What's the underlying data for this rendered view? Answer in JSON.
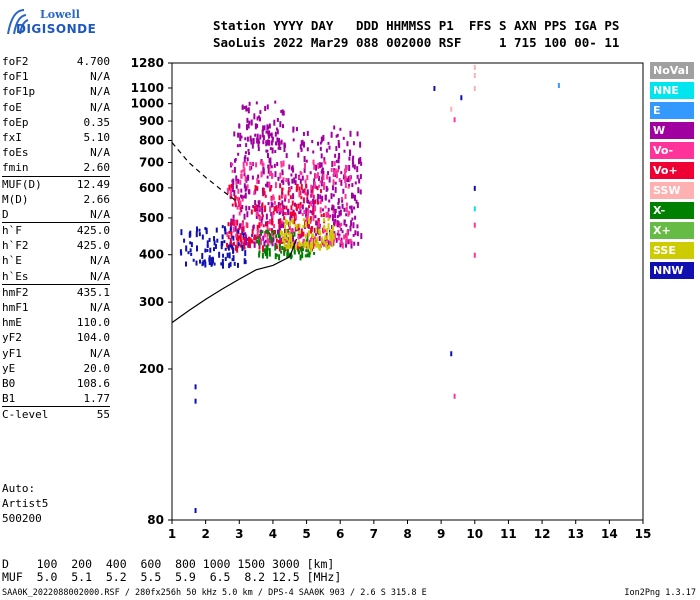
{
  "logo": {
    "top": "Lowell",
    "bottom": "DIGISONDE"
  },
  "header": {
    "line1": "Station YYYY DAY   DDD HHMMSS P1  FFS S AXN PPS IGA PS",
    "line2": "SaoLuis 2022 Mar29 088 002000 RSF     1 715 100 00- 11"
  },
  "params": [
    {
      "label": "foF2",
      "value": "4.700",
      "sep": false
    },
    {
      "label": "foF1",
      "value": "N/A",
      "sep": false
    },
    {
      "label": "foF1p",
      "value": "N/A",
      "sep": false
    },
    {
      "label": "foE",
      "value": "N/A",
      "sep": false
    },
    {
      "label": "foEp",
      "value": "0.35",
      "sep": false
    },
    {
      "label": "fxI",
      "value": "5.10",
      "sep": false
    },
    {
      "label": "foEs",
      "value": "N/A",
      "sep": false
    },
    {
      "label": "fmin",
      "value": "2.60",
      "sep": false
    },
    {
      "label": "MUF(D)",
      "value": "12.49",
      "sep": true
    },
    {
      "label": "M(D)",
      "value": "2.66",
      "sep": false
    },
    {
      "label": "D",
      "value": "N/A",
      "sep": false
    },
    {
      "label": "h`F",
      "value": "425.0",
      "sep": true
    },
    {
      "label": "h`F2",
      "value": "425.0",
      "sep": false
    },
    {
      "label": "h`E",
      "value": "N/A",
      "sep": false
    },
    {
      "label": "h`Es",
      "value": "N/A",
      "sep": false
    },
    {
      "label": "hmF2",
      "value": "435.1",
      "sep": true
    },
    {
      "label": "hmF1",
      "value": "N/A",
      "sep": false
    },
    {
      "label": "hmE",
      "value": "110.0",
      "sep": false
    },
    {
      "label": "yF2",
      "value": "104.0",
      "sep": false
    },
    {
      "label": "yF1",
      "value": "N/A",
      "sep": false
    },
    {
      "label": "yE",
      "value": "20.0",
      "sep": false
    },
    {
      "label": "B0",
      "value": "108.6",
      "sep": false
    },
    {
      "label": "B1",
      "value": "1.77",
      "sep": false
    },
    {
      "label": "C-level",
      "value": "55",
      "sep": true
    }
  ],
  "auto": {
    "line1": "Auto:",
    "line2": "Artist5",
    "line3": "500200"
  },
  "legend": [
    {
      "name": "NoVal",
      "color": "#a0a0a0"
    },
    {
      "name": "NNE",
      "color": "#00e5ee"
    },
    {
      "name": "E",
      "color": "#3399ff"
    },
    {
      "name": "W",
      "color": "#a000a0"
    },
    {
      "name": "Vo-",
      "color": "#ff3399"
    },
    {
      "name": "Vo+",
      "color": "#ee0033"
    },
    {
      "name": "SSW",
      "color": "#ffb0b0"
    },
    {
      "name": "X-",
      "color": "#008000"
    },
    {
      "name": "X+",
      "color": "#66bb44"
    },
    {
      "name": "SSE",
      "color": "#cccc00"
    },
    {
      "name": "NNW",
      "color": "#1010b0"
    }
  ],
  "footer": {
    "d_line": "D    100  200  400  600  800 1000 1500 3000 [km]",
    "muf_line": "MUF  5.0  5.1  5.2  5.5  5.9  6.5  8.2 12.5 [MHz]"
  },
  "bottom": {
    "info": "SAA0K_2022088002000.RSF / 280fx256h 50 kHz 5.0 km / DPS-4 SAA0K 903 / 2.6 S 315.8 E",
    "version": "Ion2Png 1.3.17"
  },
  "chart_data": {
    "type": "scatter",
    "title": "",
    "xlabel": "",
    "ylabel": "",
    "xlim": [
      1,
      15
    ],
    "ylim": [
      80,
      1280
    ],
    "y_scale": "log",
    "x_ticks": [
      1,
      2,
      3,
      4,
      5,
      6,
      7,
      8,
      9,
      10,
      11,
      12,
      13,
      14,
      15
    ],
    "y_ticks": [
      80,
      200,
      300,
      400,
      500,
      600,
      700,
      800,
      900,
      1000,
      1100,
      1280
    ],
    "ionogram_clusters": [
      {
        "color": "#a000a0",
        "fmin": 2.7,
        "fmax": 6.6,
        "hmin": 430,
        "hmax": 880,
        "count": 520
      },
      {
        "color": "#ee0033",
        "fmin": 2.6,
        "fmax": 5.5,
        "hmin": 420,
        "hmax": 620,
        "count": 200
      },
      {
        "color": "#ff3399",
        "fmin": 2.6,
        "fmax": 6.3,
        "hmin": 430,
        "hmax": 720,
        "count": 200
      },
      {
        "color": "#1010b0",
        "fmin": 1.2,
        "fmax": 3.2,
        "hmin": 380,
        "hmax": 480,
        "count": 90
      },
      {
        "color": "#008000",
        "fmin": 3.5,
        "fmax": 5.2,
        "hmin": 400,
        "hmax": 470,
        "count": 70
      },
      {
        "color": "#cccc00",
        "fmin": 4.2,
        "fmax": 5.8,
        "hmin": 420,
        "hmax": 500,
        "count": 90
      },
      {
        "color": "#a000a0",
        "fmin": 2.9,
        "fmax": 4.3,
        "hmin": 800,
        "hmax": 1020,
        "count": 60
      }
    ],
    "isolated_points": [
      {
        "f": 10.0,
        "h": 1250,
        "color": "#ffb0b0"
      },
      {
        "f": 10.0,
        "h": 1190,
        "color": "#ffb0b0"
      },
      {
        "f": 10.0,
        "h": 1100,
        "color": "#ffb0b0"
      },
      {
        "f": 10.0,
        "h": 600,
        "color": "#1010b0"
      },
      {
        "f": 10.0,
        "h": 530,
        "color": "#00e5ee"
      },
      {
        "f": 10.0,
        "h": 480,
        "color": "#ff3399"
      },
      {
        "f": 10.0,
        "h": 400,
        "color": "#ff3399"
      },
      {
        "f": 9.3,
        "h": 970,
        "color": "#ffb0b0"
      },
      {
        "f": 9.4,
        "h": 910,
        "color": "#ff3399"
      },
      {
        "f": 8.8,
        "h": 1100,
        "color": "#1010b0"
      },
      {
        "f": 9.6,
        "h": 1040,
        "color": "#1010b0"
      },
      {
        "f": 9.3,
        "h": 220,
        "color": "#1010b0"
      },
      {
        "f": 9.4,
        "h": 170,
        "color": "#ff3399"
      },
      {
        "f": 12.5,
        "h": 1120,
        "color": "#3399ff"
      },
      {
        "f": 1.7,
        "h": 180,
        "color": "#1010b0"
      },
      {
        "f": 1.7,
        "h": 165,
        "color": "#1010b0"
      },
      {
        "f": 1.7,
        "h": 85,
        "color": "#1010b0"
      }
    ],
    "profile_curve": {
      "f": [
        1.0,
        1.5,
        2.0,
        2.5,
        3.0,
        3.5,
        4.0,
        4.5,
        4.7
      ],
      "h": [
        265,
        285,
        305,
        325,
        345,
        365,
        375,
        395,
        440
      ]
    },
    "dashed_curve": {
      "f": [
        1.0,
        1.5,
        2.0,
        2.5,
        2.9
      ],
      "h": [
        790,
        700,
        640,
        590,
        555
      ]
    }
  }
}
